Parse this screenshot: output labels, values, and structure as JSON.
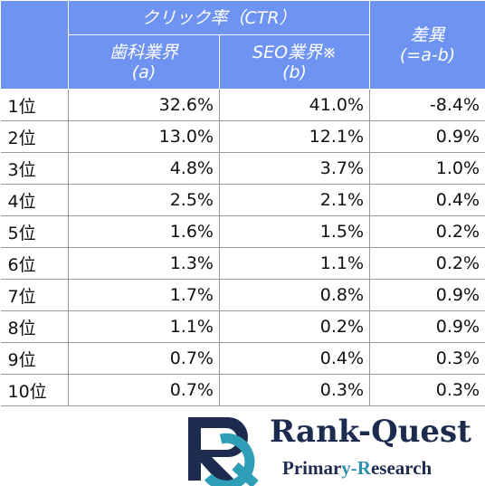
{
  "header": {
    "title": "クリック率（CTR）",
    "columns": [
      {
        "line1": "歯科業界",
        "line2": "(a)"
      },
      {
        "line1": "SEO業界※",
        "line2": "(b)"
      },
      {
        "line1": "差異",
        "line2": "(=a-b)"
      }
    ]
  },
  "table": {
    "rows": [
      [
        "1位",
        "32.6%",
        "41.0%",
        "-8.4%"
      ],
      [
        "2位",
        "13.0%",
        "12.1%",
        "0.9%"
      ],
      [
        "3位",
        "4.8%",
        "3.7%",
        "1.0%"
      ],
      [
        "4位",
        "2.5%",
        "2.1%",
        "0.4%"
      ],
      [
        "5位",
        "1.6%",
        "1.5%",
        "0.2%"
      ],
      [
        "6位",
        "1.3%",
        "1.1%",
        "0.2%"
      ],
      [
        "7位",
        "1.7%",
        "0.8%",
        "0.9%"
      ],
      [
        "8位",
        "1.1%",
        "0.2%",
        "0.9%"
      ],
      [
        "9位",
        "0.7%",
        "0.4%",
        "0.3%"
      ],
      [
        "10位",
        "0.7%",
        "0.3%",
        "0.3%"
      ]
    ]
  },
  "logo": {
    "name": "Rank-Quest",
    "tagline": [
      "Primar",
      "y-R",
      "esearch"
    ]
  }
}
